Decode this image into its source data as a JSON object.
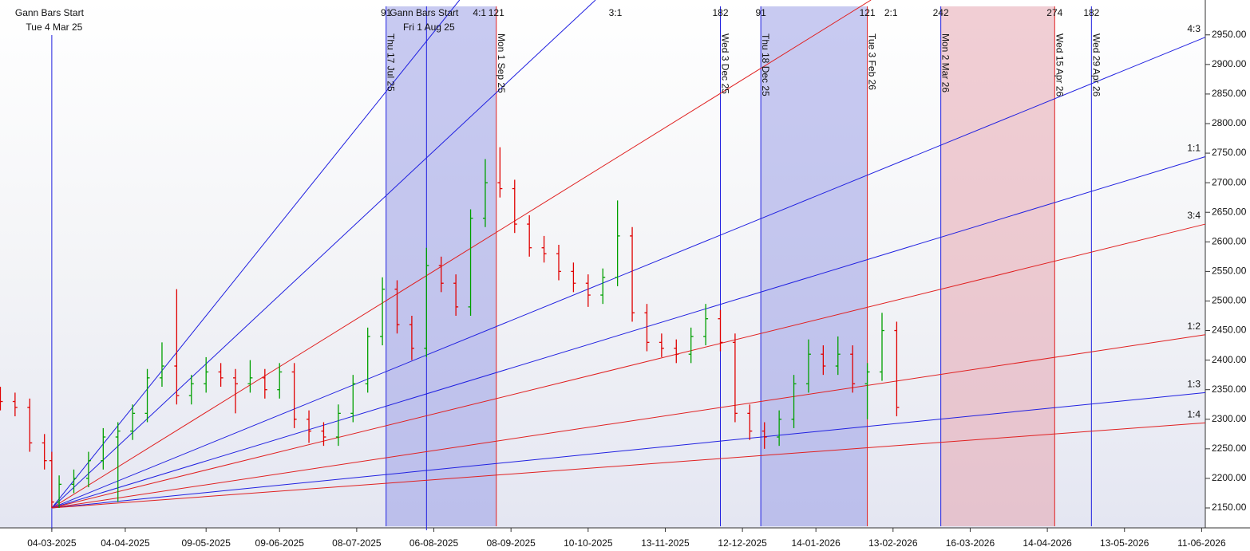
{
  "chart_data": {
    "type": "gann",
    "xlim": [
      -14.1,
      314
    ],
    "ylim": [
      2119,
      3009
    ],
    "yticks": [
      {
        "value": 2150,
        "label": "2150.00"
      },
      {
        "value": 2200,
        "label": "2200.00"
      },
      {
        "value": 2250,
        "label": "2250.00"
      },
      {
        "value": 2300,
        "label": "2300.00"
      },
      {
        "value": 2350,
        "label": "2350.00"
      },
      {
        "value": 2400,
        "label": "2400.00"
      },
      {
        "value": 2450,
        "label": "2450.00"
      },
      {
        "value": 2500,
        "label": "2500.00"
      },
      {
        "value": 2550,
        "label": "2550.00"
      },
      {
        "value": 2600,
        "label": "2600.00"
      },
      {
        "value": 2650,
        "label": "2650.00"
      },
      {
        "value": 2700,
        "label": "2700.00"
      },
      {
        "value": 2750,
        "label": "2750.00"
      },
      {
        "value": 2800,
        "label": "2800.00"
      },
      {
        "value": 2850,
        "label": "2850.00"
      },
      {
        "value": 2900,
        "label": "2900.00"
      },
      {
        "value": 2950,
        "label": "2950.00"
      }
    ],
    "xticks": [
      {
        "value": 0,
        "label": "04-03-2025"
      },
      {
        "value": 20,
        "label": "04-04-2025"
      },
      {
        "value": 42,
        "label": "09-05-2025"
      },
      {
        "value": 62,
        "label": "09-06-2025"
      },
      {
        "value": 83,
        "label": "08-07-2025"
      },
      {
        "value": 104,
        "label": "06-08-2025"
      },
      {
        "value": 125,
        "label": "08-09-2025"
      },
      {
        "value": 146,
        "label": "10-10-2025"
      },
      {
        "value": 167,
        "label": "13-11-2025"
      },
      {
        "value": 188,
        "label": "12-12-2025"
      },
      {
        "value": 208,
        "label": "14-01-2026"
      },
      {
        "value": 229,
        "label": "13-02-2026"
      },
      {
        "value": 250,
        "label": "16-03-2026"
      },
      {
        "value": 271,
        "label": "14-04-2026"
      },
      {
        "value": 292,
        "label": "13-05-2026"
      },
      {
        "value": 313,
        "label": "11-06-2026"
      }
    ],
    "up_color": "#00a000",
    "down_color": "#e00000",
    "bars": {
      "x": [
        -14,
        -10,
        -6,
        -2,
        0,
        2,
        6,
        10,
        14,
        18,
        22,
        26,
        30,
        34,
        38,
        42,
        46,
        50,
        54,
        58,
        62,
        66,
        70,
        74,
        78,
        82,
        86,
        90,
        94,
        98,
        102,
        106,
        110,
        114,
        118,
        122,
        126,
        130,
        134,
        138,
        142,
        146,
        150,
        154,
        158,
        162,
        166,
        170,
        174,
        178,
        182,
        186,
        190,
        194,
        198,
        202,
        206,
        210,
        214,
        218,
        222,
        226,
        230
      ],
      "open": [
        2340,
        2330,
        2320,
        2260,
        2230,
        2160,
        2190,
        2200,
        2230,
        2270,
        2280,
        2310,
        2370,
        2390,
        2340,
        2360,
        2380,
        2370,
        2360,
        2370,
        2350,
        2380,
        2300,
        2280,
        2270,
        2310,
        2360,
        2440,
        2520,
        2460,
        2420,
        2560,
        2530,
        2490,
        2640,
        2700,
        2690,
        2630,
        2590,
        2580,
        2550,
        2530,
        2510,
        2540,
        2610,
        2480,
        2430,
        2420,
        2410,
        2440,
        2470,
        2430,
        2310,
        2280,
        2270,
        2300,
        2360,
        2410,
        2390,
        2410,
        2360,
        2380,
        2450
      ],
      "high": [
        2355,
        2345,
        2335,
        2275,
        2245,
        2205,
        2215,
        2245,
        2285,
        2295,
        2325,
        2385,
        2430,
        2520,
        2375,
        2405,
        2395,
        2385,
        2400,
        2385,
        2395,
        2395,
        2315,
        2295,
        2325,
        2375,
        2455,
        2540,
        2535,
        2475,
        2590,
        2575,
        2545,
        2655,
        2740,
        2760,
        2705,
        2645,
        2610,
        2595,
        2565,
        2545,
        2555,
        2670,
        2625,
        2495,
        2445,
        2435,
        2455,
        2495,
        2485,
        2445,
        2325,
        2295,
        2315,
        2375,
        2435,
        2425,
        2440,
        2425,
        2395,
        2480,
        2465
      ],
      "low": [
        2315,
        2305,
        2245,
        2215,
        2150,
        2150,
        2175,
        2185,
        2215,
        2160,
        2265,
        2295,
        2355,
        2325,
        2325,
        2345,
        2355,
        2310,
        2345,
        2335,
        2335,
        2285,
        2260,
        2255,
        2255,
        2295,
        2345,
        2425,
        2445,
        2400,
        2405,
        2515,
        2475,
        2475,
        2625,
        2675,
        2615,
        2575,
        2565,
        2535,
        2515,
        2490,
        2495,
        2525,
        2465,
        2415,
        2405,
        2395,
        2395,
        2425,
        2415,
        2295,
        2265,
        2250,
        2255,
        2285,
        2345,
        2375,
        2375,
        2345,
        2300,
        2365,
        2305
      ],
      "close": [
        2330,
        2320,
        2260,
        2230,
        2160,
        2190,
        2200,
        2230,
        2270,
        2280,
        2310,
        2370,
        2390,
        2340,
        2360,
        2380,
        2370,
        2360,
        2370,
        2350,
        2380,
        2300,
        2280,
        2270,
        2310,
        2360,
        2440,
        2520,
        2460,
        2420,
        2560,
        2530,
        2490,
        2640,
        2700,
        2690,
        2630,
        2590,
        2580,
        2550,
        2530,
        2510,
        2540,
        2610,
        2480,
        2430,
        2420,
        2410,
        2440,
        2470,
        2430,
        2310,
        2280,
        2270,
        2300,
        2360,
        2410,
        2390,
        2410,
        2360,
        2380,
        2450,
        2320
      ]
    },
    "origin": {
      "x": 0,
      "price": 2150
    },
    "fan": [
      {
        "label": "4:1",
        "color": "#2020e0",
        "end": [
          111,
          3009
        ]
      },
      {
        "label": "3:1",
        "color": "#2020e0",
        "end": [
          148,
          3009
        ]
      },
      {
        "label": "2:1",
        "color": "#e02020",
        "end": [
          223,
          3009
        ]
      },
      {
        "label": "4:3",
        "color": "#2020e0",
        "end": [
          314,
          2946
        ]
      },
      {
        "label": "1:1",
        "color": "#2020e0",
        "end": [
          314,
          2744
        ]
      },
      {
        "label": "3:4",
        "color": "#e02020",
        "end": [
          314,
          2630
        ]
      },
      {
        "label": "1:2",
        "color": "#e02020",
        "end": [
          314,
          2443
        ]
      },
      {
        "label": "1:3",
        "color": "#2020e0",
        "end": [
          314,
          2345
        ]
      },
      {
        "label": "1:4",
        "color": "#e02020",
        "end": [
          314,
          2294
        ]
      }
    ],
    "bands": [
      {
        "from": 91,
        "to": 121,
        "color": "#9a9ee6"
      },
      {
        "from": 193,
        "to": 222,
        "color": "#9a9ee6"
      },
      {
        "from": 242,
        "to": 273,
        "color": "#e6a6b0"
      }
    ],
    "anchors": [
      {
        "x": 0,
        "color": "#2020e0",
        "title": "Gann Bars Start",
        "date": "Tue 4 Mar 25"
      },
      {
        "x": 102,
        "color": "#2020e0",
        "title": "Gann Bars Start",
        "date": "Fri 1 Aug 25"
      }
    ],
    "verticals": [
      {
        "x": 91,
        "color": "#2020e0",
        "date": "Thu 17 Jul 25",
        "count": 91
      },
      {
        "x": 121,
        "color": "#e02020",
        "date": "Mon 1 Sep 25",
        "count": 121
      },
      {
        "x": 182,
        "color": "#2020e0",
        "date": "Wed 3 Dec 25",
        "count": 182
      },
      {
        "x": 193,
        "color": "#2020e0",
        "date": "Thu 18 Dec 25",
        "count": 91
      },
      {
        "x": 222,
        "color": "#e02020",
        "date": "Tue 3 Feb 26",
        "count": 121
      },
      {
        "x": 242,
        "color": "#2020e0",
        "date": "Mon 2 Mar 26",
        "count": 242
      },
      {
        "x": 273,
        "color": "#e02020",
        "date": "Wed 15 Apr 26",
        "count": 274
      },
      {
        "x": 283,
        "color": "#2020e0",
        "date": "Wed 29 Apr 26",
        "count": 182
      }
    ]
  }
}
